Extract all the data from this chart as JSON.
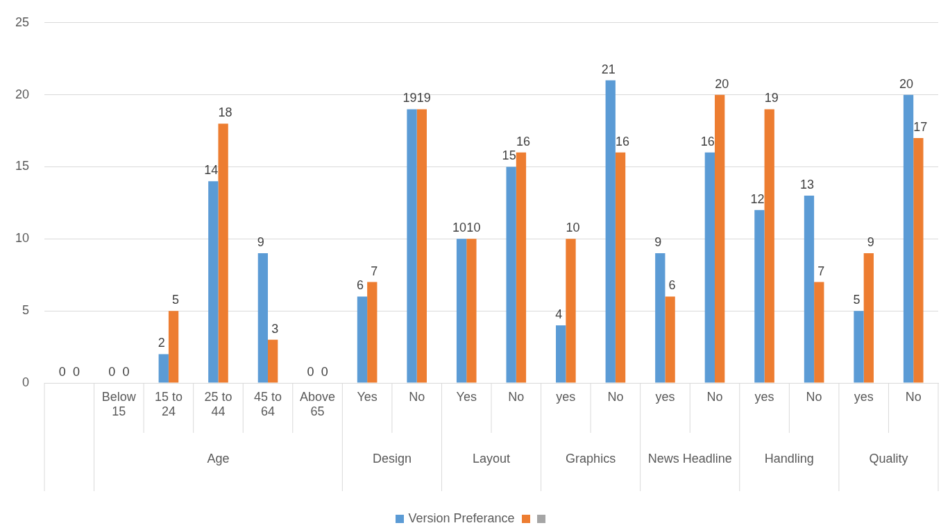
{
  "chart_data": {
    "type": "bar",
    "categories": [
      null,
      "Below 15",
      "15 to 24",
      "25 to 44",
      "45 to 64",
      "Above 65",
      "Yes",
      "No",
      "Yes",
      "No",
      "yes",
      "No",
      "yes",
      "No",
      "yes",
      "No",
      "yes",
      "No"
    ],
    "annotations": [
      "Age",
      "Design",
      "Layout",
      "Graphics",
      "News Headline",
      "Handling",
      "Quality"
    ],
    "series": [
      {
        "name": "Version Preferance",
        "color": "#5b9bd5",
        "values": [
          0,
          0,
          2,
          14,
          9,
          0,
          6,
          19,
          10,
          15,
          4,
          21,
          9,
          16,
          12,
          13,
          5,
          20
        ]
      },
      {
        "color": "#ed7d31",
        "values": [
          0,
          0,
          5,
          18,
          3,
          0,
          7,
          19,
          10,
          16,
          10,
          16,
          6,
          20,
          19,
          7,
          9,
          17
        ]
      },
      {
        "color": "#a5a5a5",
        "values": [
          null,
          null,
          null,
          null,
          null,
          null,
          null,
          null,
          null,
          null,
          null,
          null,
          null,
          null,
          null,
          null,
          null,
          null
        ]
      }
    ],
    "ylim": [
      0,
      25
    ],
    "yticks": [
      0,
      5,
      10,
      15,
      20,
      25
    ],
    "grid": "y",
    "legend": "bottom",
    "data_labels": true
  }
}
